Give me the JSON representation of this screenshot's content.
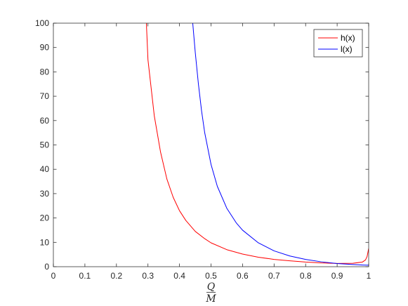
{
  "chart_data": {
    "type": "line",
    "title": "",
    "xlabel": {
      "numerator": "Q",
      "denominator": "M"
    },
    "ylabel": "",
    "xlim": [
      0,
      1
    ],
    "ylim": [
      0,
      100
    ],
    "xticks": [
      0,
      0.1,
      0.2,
      0.3,
      0.4,
      0.5,
      0.6,
      0.7,
      0.8,
      0.9,
      1
    ],
    "xtick_labels": [
      "0",
      "0.1",
      "0.2",
      "0.3",
      "0.4",
      "0.5",
      "0.6",
      "0.7",
      "0.8",
      "0.9",
      "1"
    ],
    "yticks": [
      0,
      10,
      20,
      30,
      40,
      50,
      60,
      70,
      80,
      90,
      100
    ],
    "ytick_labels": [
      "0",
      "10",
      "20",
      "30",
      "40",
      "50",
      "60",
      "70",
      "80",
      "90",
      "100"
    ],
    "grid": false,
    "legend_position": "top-right",
    "series": [
      {
        "name": "h(x)",
        "color": "#ff0000",
        "x": [
          0.295,
          0.3,
          0.32,
          0.34,
          0.36,
          0.38,
          0.4,
          0.42,
          0.45,
          0.48,
          0.5,
          0.55,
          0.6,
          0.65,
          0.7,
          0.75,
          0.8,
          0.85,
          0.9,
          0.95,
          0.98,
          0.99,
          0.995,
          1.0
        ],
        "y": [
          100,
          85,
          62,
          47,
          36,
          28.5,
          23,
          19,
          14.5,
          11.5,
          9.8,
          7.0,
          5.2,
          3.9,
          3.0,
          2.4,
          1.9,
          1.55,
          1.35,
          1.4,
          1.9,
          2.8,
          4.2,
          7.5
        ]
      },
      {
        "name": "l(x)",
        "color": "#0000ff",
        "x": [
          0.442,
          0.45,
          0.46,
          0.47,
          0.48,
          0.5,
          0.52,
          0.55,
          0.58,
          0.6,
          0.65,
          0.7,
          0.75,
          0.8,
          0.85,
          0.9,
          0.95,
          0.98,
          1.0
        ],
        "y": [
          100,
          88,
          75,
          64,
          55,
          42,
          33,
          24,
          18,
          15,
          9.8,
          6.5,
          4.4,
          3.0,
          2.0,
          1.3,
          0.9,
          0.7,
          0.6
        ]
      }
    ]
  }
}
